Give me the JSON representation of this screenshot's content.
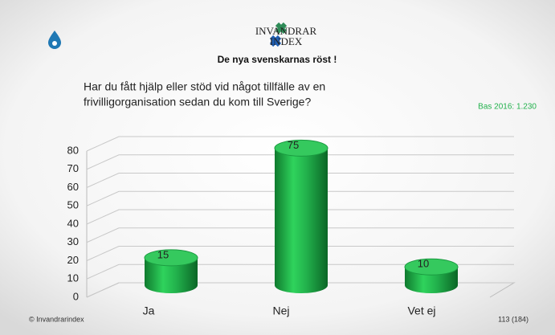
{
  "logo": {
    "line1": "INVANDRAR",
    "line2": "INDEX"
  },
  "subtitle": "De nya svenskarnas röst !",
  "question": [
    "Har du fått hjälp eller stöd vid något tillfälle av en",
    "frivilligorganisation sedan du kom till Sverige?"
  ],
  "base_note": "Bas 2016: 1.230",
  "footer": {
    "copyright": "© Invandrarindex",
    "page": "113 (184)"
  },
  "chart_data": {
    "type": "bar3d",
    "categories": [
      "Ja",
      "Nej",
      "Vet ej"
    ],
    "values": [
      15,
      75,
      10
    ],
    "color": "#22b14c",
    "ylim": [
      0,
      80
    ],
    "yticks": [
      0,
      10,
      20,
      30,
      40,
      50,
      60,
      70,
      80
    ],
    "grid": true
  }
}
